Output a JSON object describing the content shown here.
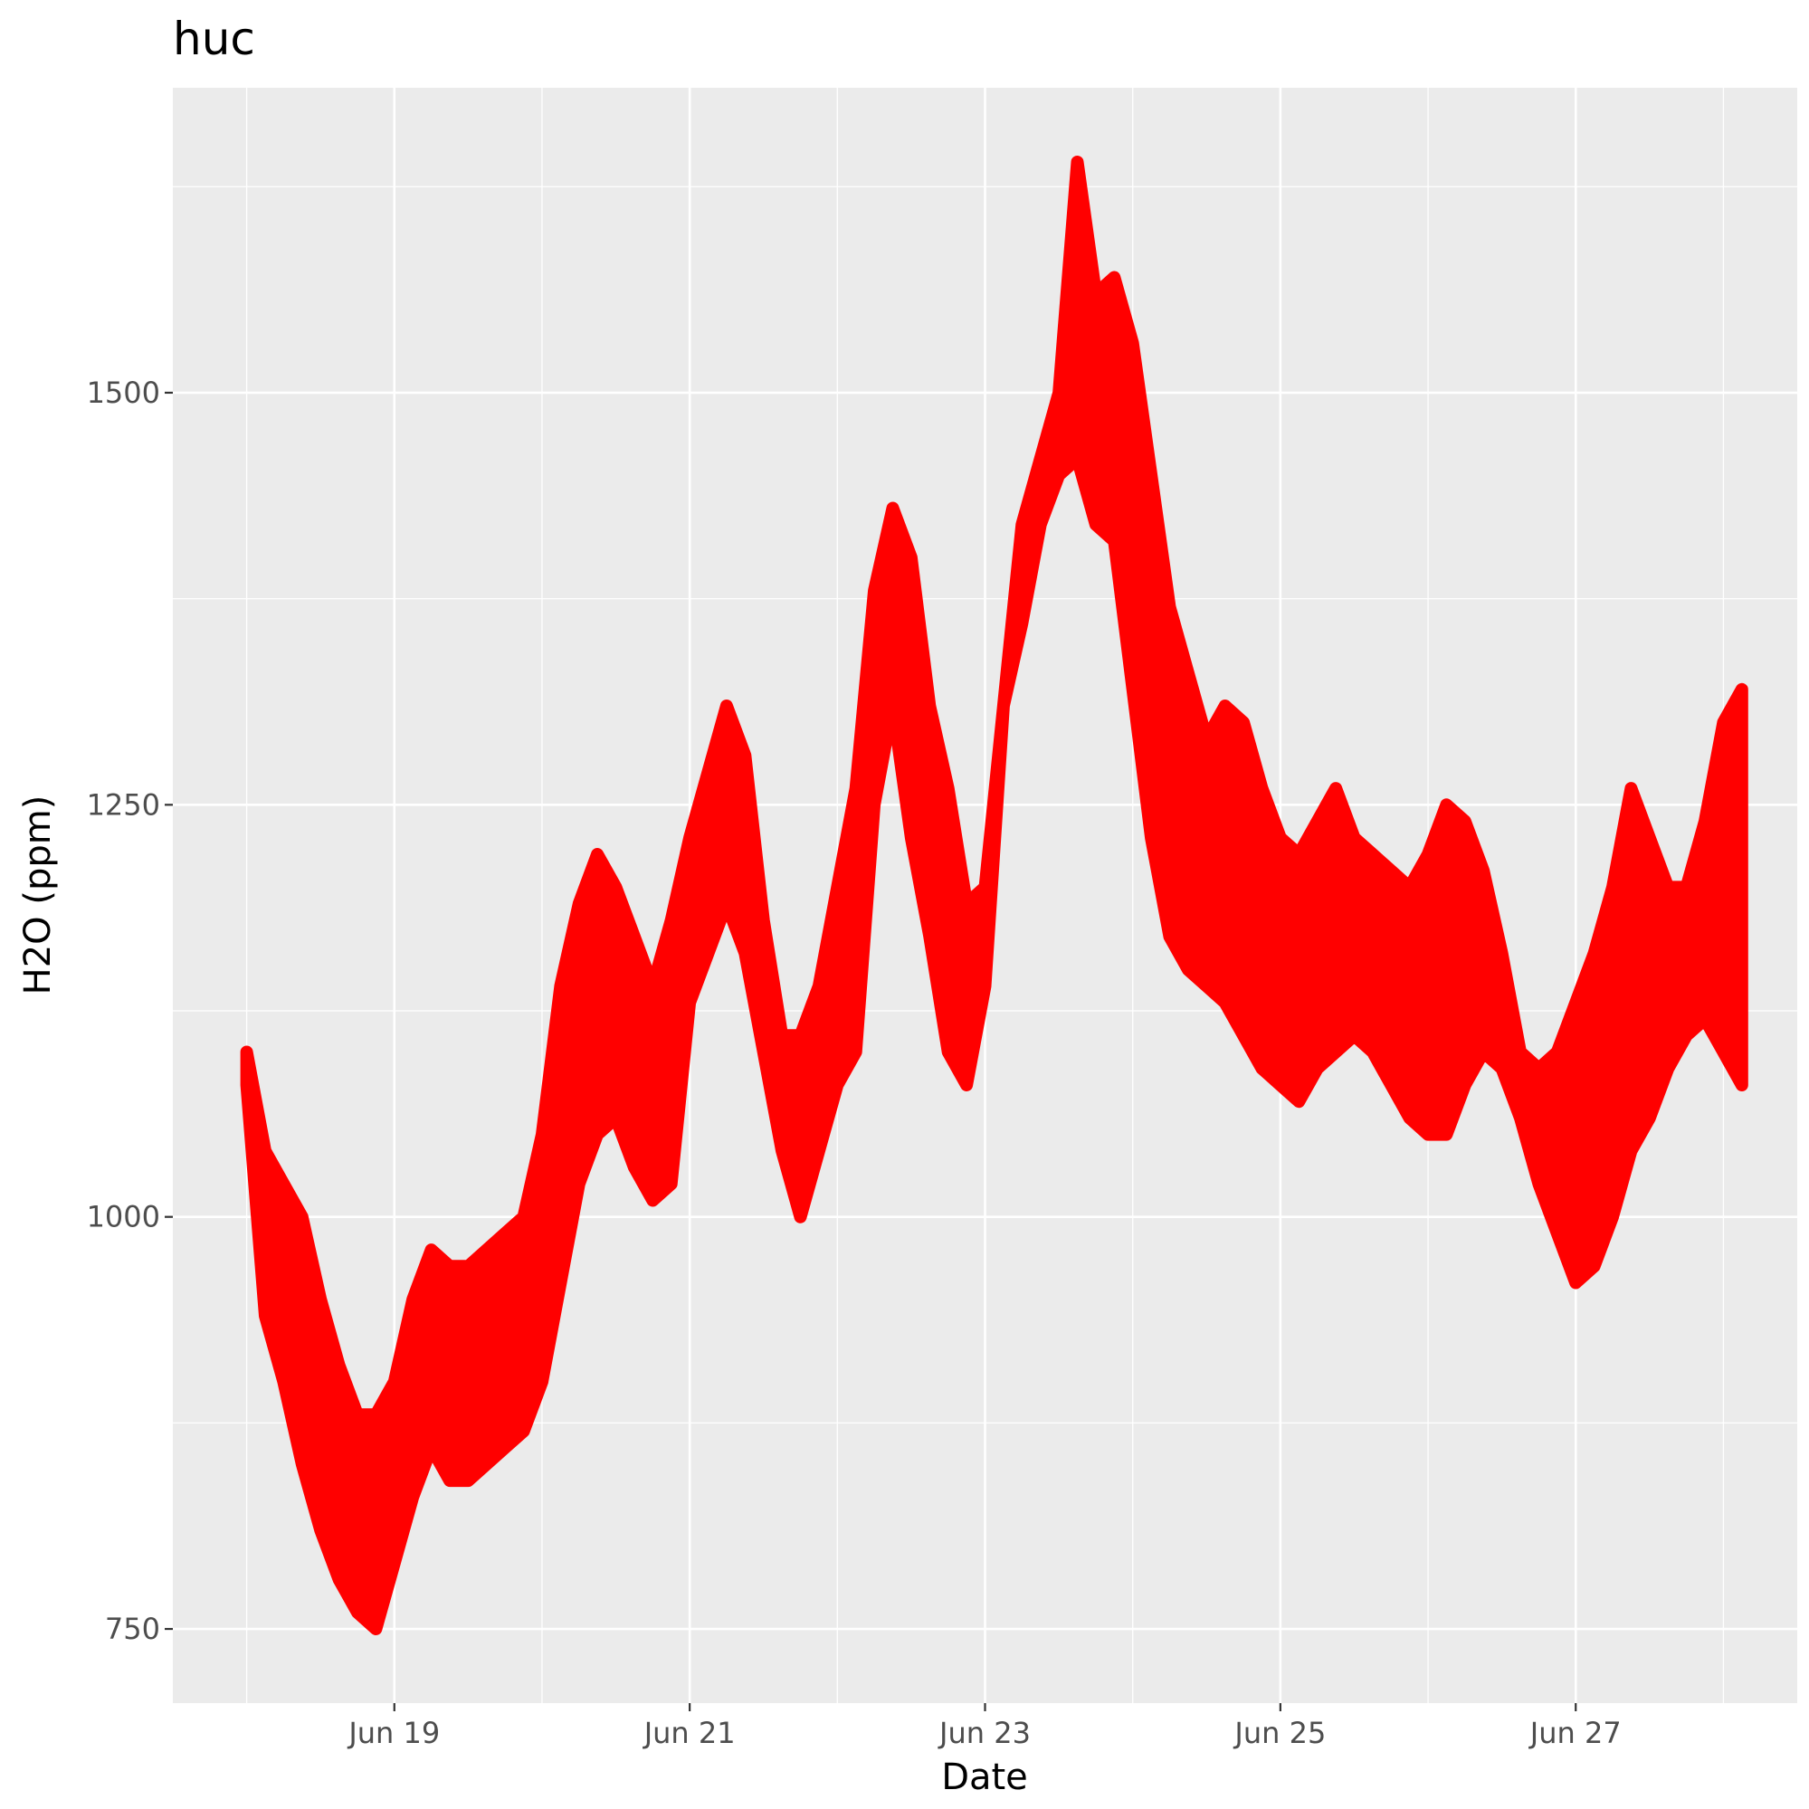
{
  "chart_data": {
    "type": "line",
    "title": "huc",
    "xlabel": "Date",
    "ylabel": "H2O (ppm)",
    "x_ticks": [
      "Jun 19",
      "Jun 21",
      "Jun 23",
      "Jun 25",
      "Jun 27"
    ],
    "x_tick_dates": [
      "2017-06-19",
      "2017-06-21",
      "2017-06-23",
      "2017-06-25",
      "2017-06-27"
    ],
    "y_ticks": [
      750,
      1000,
      1250,
      1500
    ],
    "xlim": [
      "2017-06-17 12:00",
      "2017-06-28 12:00"
    ],
    "ylim": [
      705,
      1685
    ],
    "grid": true,
    "legend": "none",
    "colors": {
      "series": "#ff0000",
      "panel": "#ebebeb",
      "grid": "#ffffff"
    },
    "series": [
      {
        "x": [
          "2017-06-18 00:00",
          "2017-06-18 03:00",
          "2017-06-18 06:00",
          "2017-06-18 09:00",
          "2017-06-18 12:00",
          "2017-06-18 15:00",
          "2017-06-18 18:00",
          "2017-06-18 21:00",
          "2017-06-19 00:00",
          "2017-06-19 03:00",
          "2017-06-19 06:00",
          "2017-06-19 09:00",
          "2017-06-19 12:00",
          "2017-06-19 15:00",
          "2017-06-19 18:00",
          "2017-06-19 21:00",
          "2017-06-20 00:00",
          "2017-06-20 03:00",
          "2017-06-20 06:00",
          "2017-06-20 09:00",
          "2017-06-20 12:00",
          "2017-06-20 15:00",
          "2017-06-20 18:00",
          "2017-06-20 21:00",
          "2017-06-21 00:00",
          "2017-06-21 03:00",
          "2017-06-21 06:00",
          "2017-06-21 09:00",
          "2017-06-21 12:00",
          "2017-06-21 15:00",
          "2017-06-21 18:00",
          "2017-06-21 21:00",
          "2017-06-22 00:00",
          "2017-06-22 03:00",
          "2017-06-22 06:00",
          "2017-06-22 09:00",
          "2017-06-22 12:00",
          "2017-06-22 15:00",
          "2017-06-22 18:00",
          "2017-06-22 21:00",
          "2017-06-23 00:00",
          "2017-06-23 03:00",
          "2017-06-23 06:00",
          "2017-06-23 09:00",
          "2017-06-23 12:00",
          "2017-06-23 15:00",
          "2017-06-23 18:00",
          "2017-06-23 21:00",
          "2017-06-24 00:00",
          "2017-06-24 03:00",
          "2017-06-24 06:00",
          "2017-06-24 09:00",
          "2017-06-24 12:00",
          "2017-06-24 15:00",
          "2017-06-24 18:00",
          "2017-06-24 21:00",
          "2017-06-25 00:00",
          "2017-06-25 03:00",
          "2017-06-25 06:00",
          "2017-06-25 09:00",
          "2017-06-25 12:00",
          "2017-06-25 15:00",
          "2017-06-25 18:00",
          "2017-06-25 21:00",
          "2017-06-26 00:00",
          "2017-06-26 03:00",
          "2017-06-26 06:00",
          "2017-06-26 09:00",
          "2017-06-26 12:00",
          "2017-06-26 15:00",
          "2017-06-26 18:00",
          "2017-06-26 21:00",
          "2017-06-27 00:00",
          "2017-06-27 03:00",
          "2017-06-27 06:00",
          "2017-06-27 09:00",
          "2017-06-27 12:00",
          "2017-06-27 15:00",
          "2017-06-27 18:00",
          "2017-06-27 21:00",
          "2017-06-28 00:00",
          "2017-06-28 03:00"
        ],
        "low": [
          1080,
          940,
          900,
          850,
          810,
          780,
          760,
          750,
          790,
          830,
          860,
          840,
          840,
          850,
          860,
          870,
          900,
          960,
          1020,
          1050,
          1060,
          1030,
          1010,
          1020,
          1130,
          1160,
          1190,
          1160,
          1100,
          1040,
          1000,
          1040,
          1080,
          1100,
          1250,
          1310,
          1230,
          1170,
          1100,
          1080,
          1140,
          1310,
          1360,
          1420,
          1450,
          1460,
          1420,
          1410,
          1320,
          1230,
          1170,
          1150,
          1140,
          1130,
          1110,
          1090,
          1080,
          1070,
          1090,
          1100,
          1110,
          1100,
          1080,
          1060,
          1050,
          1050,
          1080,
          1100,
          1090,
          1060,
          1020,
          990,
          960,
          970,
          1000,
          1040,
          1060,
          1090,
          1110,
          1120,
          1100,
          1080
        ],
        "high": [
          1100,
          1040,
          1020,
          1000,
          950,
          910,
          880,
          880,
          900,
          950,
          980,
          970,
          970,
          980,
          990,
          1000,
          1050,
          1140,
          1190,
          1220,
          1200,
          1170,
          1140,
          1180,
          1230,
          1270,
          1310,
          1280,
          1180,
          1110,
          1110,
          1140,
          1200,
          1260,
          1380,
          1430,
          1400,
          1310,
          1260,
          1190,
          1200,
          1310,
          1420,
          1460,
          1500,
          1640,
          1560,
          1570,
          1530,
          1450,
          1370,
          1330,
          1290,
          1310,
          1300,
          1260,
          1230,
          1220,
          1240,
          1260,
          1230,
          1220,
          1210,
          1200,
          1220,
          1250,
          1240,
          1210,
          1160,
          1100,
          1090,
          1100,
          1130,
          1160,
          1200,
          1260,
          1230,
          1200,
          1200,
          1240,
          1300,
          1320
        ]
      }
    ]
  }
}
